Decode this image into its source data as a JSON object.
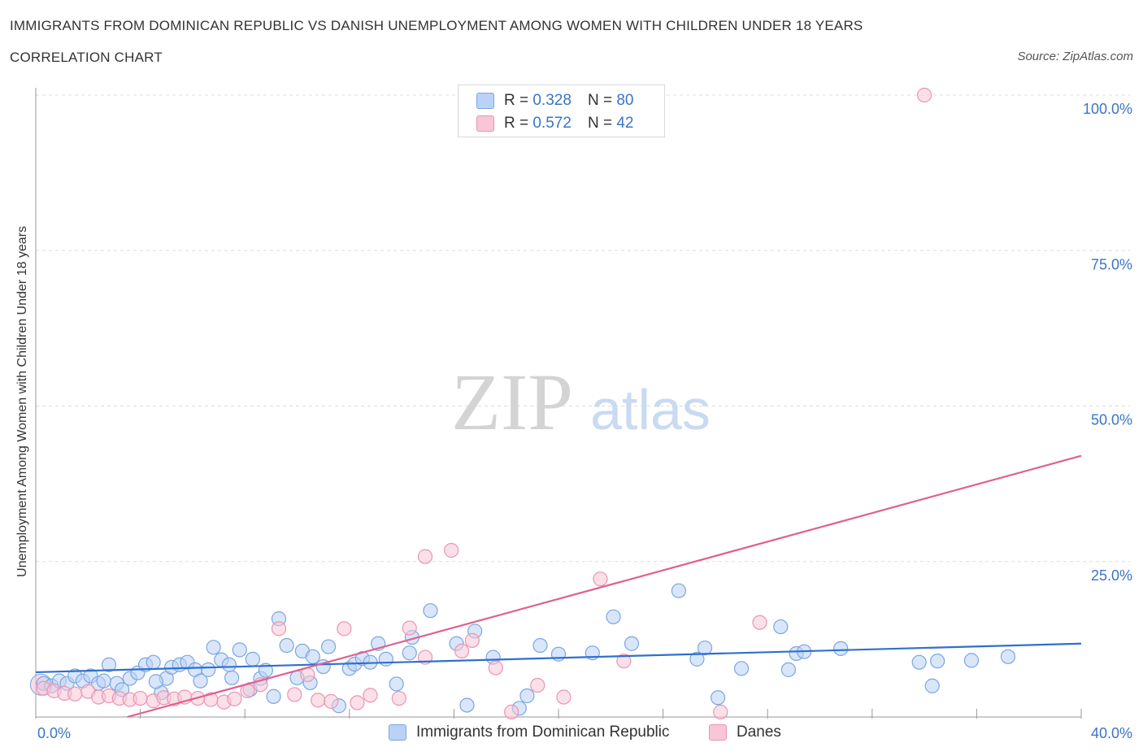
{
  "header": {
    "title": "IMMIGRANTS FROM DOMINICAN REPUBLIC VS DANISH UNEMPLOYMENT AMONG WOMEN WITH CHILDREN UNDER 18 YEARS",
    "subtitle": "CORRELATION CHART",
    "source": "Source: ZipAtlas.com"
  },
  "watermark": {
    "zip": "ZIP",
    "atlas": "atlas"
  },
  "stats": [
    {
      "r_label": "R =",
      "r_value": "0.328",
      "n_label": "N =",
      "n_value": "80"
    },
    {
      "r_label": "R =",
      "r_value": "0.572",
      "n_label": "N =",
      "n_value": "42"
    }
  ],
  "colors": {
    "blue_fill": "#b9d2f5",
    "blue_stroke": "#7aa6e0",
    "blue_line": "#2f6fcf",
    "pink_fill": "#f8c6d6",
    "pink_stroke": "#eb94b2",
    "pink_line": "#e0608f",
    "tick_text": "#3a74c7",
    "grid": "#dddddd"
  },
  "chart_data": {
    "type": "scatter",
    "title": "IMMIGRANTS FROM DOMINICAN REPUBLIC VS DANISH UNEMPLOYMENT AMONG WOMEN WITH CHILDREN UNDER 18 YEARS",
    "xlabel": "",
    "ylabel": "Unemployment Among Women with Children Under 18 years",
    "xlim": [
      0,
      40
    ],
    "ylim": [
      0,
      100
    ],
    "x_tick_labels": [
      "0.0%",
      "40.0%"
    ],
    "y_tick_values": [
      25,
      50,
      75,
      100
    ],
    "y_tick_labels": [
      "25.0%",
      "50.0%",
      "75.0%",
      "100.0%"
    ],
    "grid": true,
    "legend_position": "bottom",
    "series": [
      {
        "name": "Immigrants from Dominican Republic",
        "R": 0.328,
        "N": 80,
        "trend": {
          "x": [
            0,
            40
          ],
          "y": [
            7.2,
            11.8
          ]
        },
        "points": [
          [
            0.3,
            5.4
          ],
          [
            0.6,
            5.0
          ],
          [
            0.9,
            5.8
          ],
          [
            1.2,
            5.4
          ],
          [
            1.5,
            6.6
          ],
          [
            1.8,
            5.8
          ],
          [
            2.1,
            6.6
          ],
          [
            2.4,
            5.4
          ],
          [
            2.8,
            8.4
          ],
          [
            3.1,
            5.4
          ],
          [
            3.3,
            4.4
          ],
          [
            3.6,
            6.2
          ],
          [
            3.9,
            7.1
          ],
          [
            4.2,
            8.4
          ],
          [
            4.5,
            8.8
          ],
          [
            4.8,
            3.9
          ],
          [
            5.0,
            6.2
          ],
          [
            5.2,
            8.0
          ],
          [
            5.5,
            8.4
          ],
          [
            5.8,
            8.8
          ],
          [
            6.1,
            7.6
          ],
          [
            6.3,
            5.8
          ],
          [
            6.6,
            7.6
          ],
          [
            6.8,
            11.2
          ],
          [
            7.1,
            9.2
          ],
          [
            7.4,
            8.4
          ],
          [
            7.8,
            10.8
          ],
          [
            8.2,
            4.4
          ],
          [
            8.3,
            9.3
          ],
          [
            8.6,
            6.2
          ],
          [
            8.8,
            7.5
          ],
          [
            9.1,
            3.3
          ],
          [
            9.3,
            15.8
          ],
          [
            9.6,
            11.5
          ],
          [
            10.0,
            6.3
          ],
          [
            10.2,
            10.6
          ],
          [
            10.5,
            5.5
          ],
          [
            10.6,
            9.7
          ],
          [
            11.0,
            8.1
          ],
          [
            11.2,
            11.3
          ],
          [
            11.6,
            1.8
          ],
          [
            12.0,
            7.8
          ],
          [
            12.2,
            8.5
          ],
          [
            12.5,
            9.4
          ],
          [
            12.8,
            8.8
          ],
          [
            13.1,
            11.8
          ],
          [
            13.4,
            9.3
          ],
          [
            13.8,
            5.3
          ],
          [
            14.3,
            10.3
          ],
          [
            14.4,
            12.8
          ],
          [
            15.1,
            17.1
          ],
          [
            16.1,
            11.8
          ],
          [
            16.5,
            1.9
          ],
          [
            16.8,
            13.8
          ],
          [
            17.5,
            9.6
          ],
          [
            18.5,
            1.4
          ],
          [
            18.8,
            3.4
          ],
          [
            19.3,
            11.5
          ],
          [
            20.0,
            10.1
          ],
          [
            21.3,
            10.3
          ],
          [
            22.1,
            16.1
          ],
          [
            22.8,
            11.8
          ],
          [
            24.6,
            20.3
          ],
          [
            25.3,
            9.3
          ],
          [
            25.6,
            11.1
          ],
          [
            26.1,
            3.1
          ],
          [
            27.0,
            7.8
          ],
          [
            28.5,
            14.5
          ],
          [
            28.8,
            7.6
          ],
          [
            29.1,
            10.2
          ],
          [
            29.4,
            10.5
          ],
          [
            30.8,
            11.0
          ],
          [
            33.8,
            8.8
          ],
          [
            34.3,
            5.0
          ],
          [
            34.5,
            9.0
          ],
          [
            35.8,
            9.1
          ],
          [
            37.2,
            9.7
          ],
          [
            4.6,
            5.7
          ],
          [
            2.6,
            5.8
          ],
          [
            7.5,
            6.3
          ]
        ]
      },
      {
        "name": "Danes",
        "R": 0.572,
        "N": 42,
        "trend": {
          "x": [
            3.5,
            40
          ],
          "y": [
            0,
            42.0
          ]
        },
        "points": [
          [
            0.3,
            4.6
          ],
          [
            0.7,
            4.2
          ],
          [
            1.1,
            3.8
          ],
          [
            1.5,
            3.7
          ],
          [
            2.0,
            4.1
          ],
          [
            2.4,
            3.2
          ],
          [
            2.8,
            3.4
          ],
          [
            3.2,
            3.0
          ],
          [
            3.6,
            2.8
          ],
          [
            4.0,
            3.0
          ],
          [
            4.5,
            2.6
          ],
          [
            4.9,
            3.1
          ],
          [
            5.3,
            2.9
          ],
          [
            5.7,
            3.2
          ],
          [
            6.2,
            3.0
          ],
          [
            6.7,
            2.8
          ],
          [
            7.2,
            2.4
          ],
          [
            7.6,
            2.9
          ],
          [
            8.1,
            4.2
          ],
          [
            8.6,
            5.2
          ],
          [
            9.3,
            14.2
          ],
          [
            9.9,
            3.6
          ],
          [
            10.4,
            6.8
          ],
          [
            10.8,
            2.7
          ],
          [
            11.3,
            2.5
          ],
          [
            11.8,
            14.2
          ],
          [
            12.3,
            2.3
          ],
          [
            12.8,
            3.5
          ],
          [
            13.9,
            3.0
          ],
          [
            14.3,
            14.3
          ],
          [
            14.9,
            9.6
          ],
          [
            14.9,
            25.8
          ],
          [
            15.9,
            26.8
          ],
          [
            16.3,
            10.6
          ],
          [
            16.7,
            12.3
          ],
          [
            17.6,
            7.9
          ],
          [
            18.2,
            0.8
          ],
          [
            19.2,
            5.1
          ],
          [
            20.2,
            3.2
          ],
          [
            21.6,
            22.2
          ],
          [
            22.5,
            9.0
          ],
          [
            27.7,
            15.2
          ]
        ]
      }
    ],
    "outlier_points": [
      {
        "series": "Danes",
        "x": 34.0,
        "y": 100.0
      },
      {
        "series": "Danes",
        "x": 26.2,
        "y": 0.8
      }
    ]
  },
  "legend": {
    "items": [
      {
        "label": "Immigrants from Dominican Republic"
      },
      {
        "label": "Danes"
      }
    ]
  }
}
